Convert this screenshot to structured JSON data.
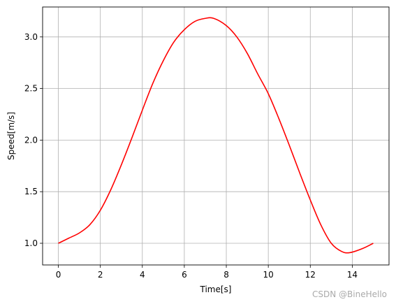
{
  "chart_data": {
    "type": "line",
    "xlabel": "Time[s]",
    "ylabel": "Speed[m/s]",
    "xlim": [
      -0.75,
      15.75
    ],
    "ylim": [
      0.79,
      3.29
    ],
    "xticks": [
      0,
      2,
      4,
      6,
      8,
      10,
      12,
      14
    ],
    "yticks": [
      1.0,
      1.5,
      2.0,
      2.5,
      3.0
    ],
    "grid": true,
    "series": [
      {
        "color": "#ff0000",
        "x": [
          0,
          0.5,
          1,
          1.5,
          2,
          2.5,
          3,
          3.5,
          4,
          4.5,
          5,
          5.5,
          6,
          6.5,
          7,
          7.4,
          8,
          8.5,
          9,
          9.5,
          10,
          10.5,
          11,
          11.5,
          12,
          12.5,
          13,
          13.5,
          13.9,
          14.5,
          15
        ],
        "y": [
          1.0,
          1.05,
          1.1,
          1.18,
          1.32,
          1.52,
          1.76,
          2.02,
          2.29,
          2.55,
          2.77,
          2.95,
          3.07,
          3.15,
          3.18,
          3.18,
          3.11,
          3.0,
          2.84,
          2.64,
          2.45,
          2.21,
          1.95,
          1.68,
          1.42,
          1.18,
          1.0,
          0.92,
          0.91,
          0.95,
          1.0
        ]
      }
    ]
  },
  "watermark": "CSDN @BineHello"
}
